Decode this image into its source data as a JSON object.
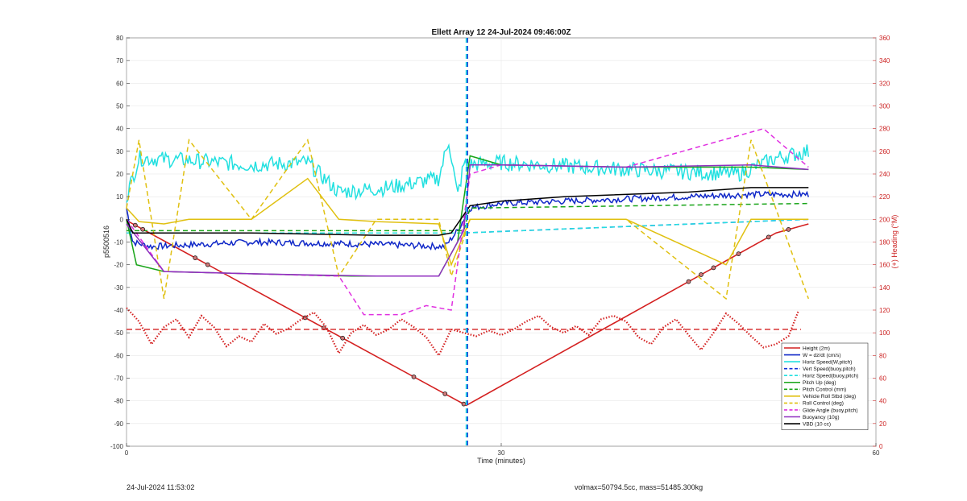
{
  "chart_data": {
    "type": "line",
    "title": "Ellett Array 12 24-Jul-2024 09:46:00Z",
    "xlabel": "Time (minutes)",
    "ylabel": "p5500516",
    "ylabel_right": "(+) Heading (°M)",
    "xlim": [
      0,
      60
    ],
    "ylim": [
      -100,
      80
    ],
    "ylim_right": [
      0,
      360
    ],
    "x_ticks": [
      0,
      30,
      60
    ],
    "y_ticks": [
      -100,
      -90,
      -80,
      -70,
      -60,
      -50,
      -40,
      -30,
      -20,
      -10,
      0,
      10,
      20,
      30,
      40,
      50,
      60,
      70,
      80
    ],
    "y_ticks_right": [
      0,
      20,
      40,
      60,
      80,
      100,
      120,
      140,
      160,
      180,
      200,
      220,
      240,
      260,
      280,
      300,
      320,
      340,
      360
    ],
    "grid": true,
    "legend_position": "bottom-right",
    "series": [
      {
        "name": "Height (2m)",
        "color": "#d42020",
        "style": "solid",
        "x": [
          0,
          27.2,
          52,
          54.6
        ],
        "y": [
          -0.5,
          -82,
          -6,
          -2
        ]
      },
      {
        "name": "W = dz/dt (cm/s)",
        "color": "#1028c8",
        "style": "solid",
        "x": [
          0,
          0.5,
          2,
          10,
          20,
          25.5,
          26.5,
          27.5,
          30,
          40,
          45,
          50,
          54.6
        ],
        "y": [
          5,
          -10,
          -12,
          -10,
          -11,
          -12,
          -5,
          5,
          7,
          9,
          10,
          11,
          11
        ]
      },
      {
        "name": "Horiz Speed(W,pitch)",
        "color": "#22e0e0",
        "style": "solid",
        "x": [
          0,
          1,
          5,
          10,
          14.5,
          17,
          21,
          25,
          25.8,
          26.5,
          27,
          30,
          40,
          49,
          52,
          54.6
        ],
        "y": [
          10,
          27,
          26,
          24,
          25,
          12,
          14,
          18,
          35,
          10,
          24,
          25,
          22,
          20,
          27,
          30
        ]
      },
      {
        "name": "Vert Speed(buoy,pitch)",
        "color": "#1030d8",
        "style": "dashed",
        "x": [
          0,
          27,
          54.6
        ],
        "y": [
          -6,
          -6,
          0
        ]
      },
      {
        "name": "Horiz Speed(buoy,pitch)",
        "color": "#22e0e0",
        "style": "dashed",
        "x": [
          0,
          27,
          54.6
        ],
        "y": [
          -6,
          -6,
          0
        ]
      },
      {
        "name": "Pitch Up (deg)",
        "color": "#18a418",
        "style": "solid",
        "x": [
          0,
          0.8,
          3,
          10,
          18,
          25,
          26.5,
          27.5,
          30,
          40,
          50,
          54.6
        ],
        "y": [
          0,
          -20,
          -23,
          -24,
          -25,
          -25,
          -10,
          28,
          24,
          23,
          23,
          22
        ]
      },
      {
        "name": "Pitch Control (mm)",
        "color": "#18a418",
        "style": "dashed",
        "x": [
          0,
          27,
          27.5,
          54.6
        ],
        "y": [
          -5,
          -5,
          5,
          7
        ]
      },
      {
        "name": "Vehicle Roll Stbd (deg)",
        "color": "#e0c010",
        "style": "solid",
        "x": [
          0,
          1,
          3,
          5,
          10,
          14.5,
          17,
          20,
          25,
          26,
          27.5,
          30,
          40,
          48,
          50,
          54.6
        ],
        "y": [
          5,
          -1,
          -2,
          0,
          0,
          18,
          0,
          -1,
          -2,
          -20,
          0,
          0,
          0,
          -20,
          0,
          0
        ]
      },
      {
        "name": "Roll Control (deg)",
        "color": "#e0c010",
        "style": "dashed",
        "x": [
          0,
          1,
          3,
          5,
          10,
          14.5,
          17,
          20,
          25,
          26,
          27.5,
          30,
          40,
          48,
          50,
          54.6
        ],
        "y": [
          5,
          35,
          -35,
          35,
          0,
          35,
          -25,
          0,
          0,
          -25,
          0,
          0,
          0,
          -35,
          35,
          -35
        ]
      },
      {
        "name": "Glide Angle (buoy,pitch)",
        "color": "#e030e0",
        "style": "dashed",
        "x": [
          0,
          3,
          10,
          17,
          19,
          22,
          24,
          26,
          27.5,
          30,
          40,
          51,
          54.6
        ],
        "y": [
          0,
          -23,
          -24,
          -25,
          -42,
          -42,
          -38,
          -40,
          20,
          24,
          23,
          40,
          23
        ]
      },
      {
        "name": "Buoyancy (10g)",
        "color": "#9030c0",
        "style": "solid",
        "x": [
          0,
          3,
          10,
          20,
          25,
          27,
          27.5,
          30,
          40,
          50,
          54.6
        ],
        "y": [
          -2,
          -23,
          -24,
          -25,
          -25,
          -5,
          24,
          24,
          23,
          24,
          22
        ]
      },
      {
        "name": "VBD (10 cc)",
        "color": "#000000",
        "style": "solid",
        "x": [
          0,
          0.5,
          2,
          10,
          20,
          25,
          26,
          27.5,
          30,
          35,
          45,
          50,
          54.6
        ],
        "y": [
          0,
          -6,
          -6,
          -6,
          -7,
          -7,
          -6,
          6,
          8,
          10,
          12,
          14,
          14
        ]
      }
    ],
    "heading_series": {
      "name": "Heading",
      "axis": "right",
      "color": "#d42020",
      "style": "dotted",
      "mean": 103,
      "x": [
        0,
        1,
        2,
        3,
        4,
        5,
        6,
        7,
        8,
        9,
        10,
        11,
        12,
        13,
        14,
        15,
        16,
        17,
        18,
        19,
        20,
        21,
        22,
        23,
        24,
        25,
        26,
        27,
        28,
        29,
        30,
        31,
        32,
        33,
        34,
        35,
        36,
        37,
        38,
        39,
        40,
        41,
        42,
        43,
        44,
        45,
        46,
        47,
        48,
        49,
        50,
        51,
        52,
        53,
        54
      ],
      "y": [
        122,
        110,
        90,
        105,
        112,
        96,
        115,
        105,
        88,
        97,
        92,
        108,
        99,
        104,
        112,
        118,
        105,
        82,
        100,
        107,
        98,
        103,
        112,
        105,
        96,
        80,
        103,
        100,
        97,
        102,
        98,
        103,
        110,
        115,
        105,
        100,
        106,
        98,
        112,
        115,
        110,
        96,
        90,
        105,
        112,
        98,
        85,
        100,
        117,
        108,
        97,
        87,
        90,
        97,
        125
      ]
    },
    "events": [
      {
        "name": "Vert Speed(buoy,pitch)",
        "x": 27.2,
        "color": "#1030d8"
      },
      {
        "name": "Horiz Speed(buoy,pitch)",
        "x": 27.2,
        "color": "#22e0e0"
      }
    ],
    "height_markers_x": [
      0.7,
      1.3,
      5.5,
      6.5,
      14.3,
      15.8,
      17.3,
      23,
      25.5,
      27,
      45,
      46,
      47,
      49,
      51.4,
      53
    ]
  },
  "footer": {
    "left": "24-Jul-2024 11:53:02",
    "right": "volmax=50794.5cc, mass=51485.300kg"
  }
}
